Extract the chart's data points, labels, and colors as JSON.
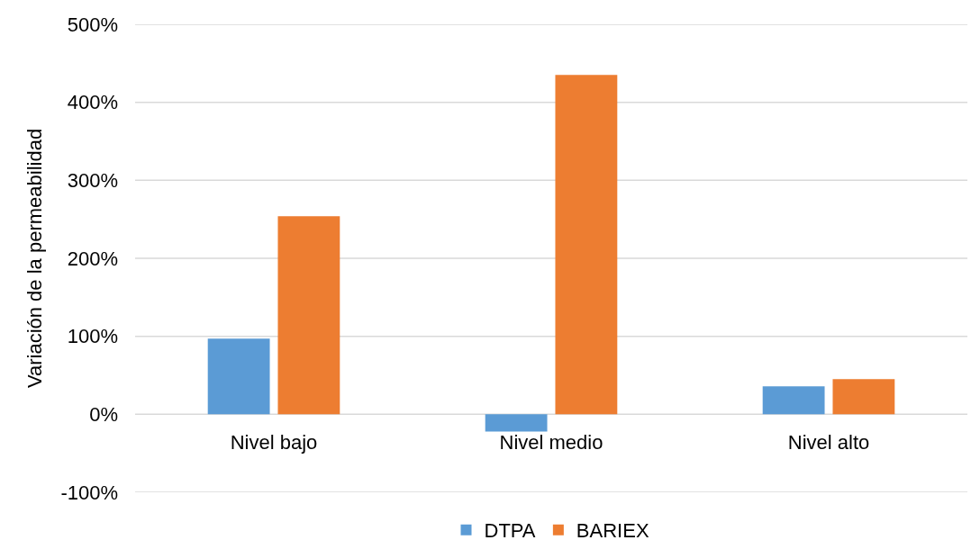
{
  "chart_data": {
    "type": "bar",
    "ylabel": "Variación de la permeabilidad",
    "categories": [
      "Nivel bajo",
      "Nivel medio",
      "Nivel alto"
    ],
    "series": [
      {
        "name": "DTPA",
        "color": "#5b9bd5",
        "values": [
          97,
          -22,
          36
        ]
      },
      {
        "name": "BARIEX",
        "color": "#ed7d31",
        "values": [
          254,
          435,
          45
        ]
      }
    ],
    "ylim": [
      -100,
      500
    ],
    "yticks": [
      {
        "value": -100,
        "label": "-100%"
      },
      {
        "value": 0,
        "label": "0%"
      },
      {
        "value": 100,
        "label": "100%"
      },
      {
        "value": 200,
        "label": "200%"
      },
      {
        "value": 300,
        "label": "300%"
      },
      {
        "value": 400,
        "label": "400%"
      },
      {
        "value": 500,
        "label": "500%"
      }
    ],
    "grid": "y",
    "legend": "bottom"
  }
}
